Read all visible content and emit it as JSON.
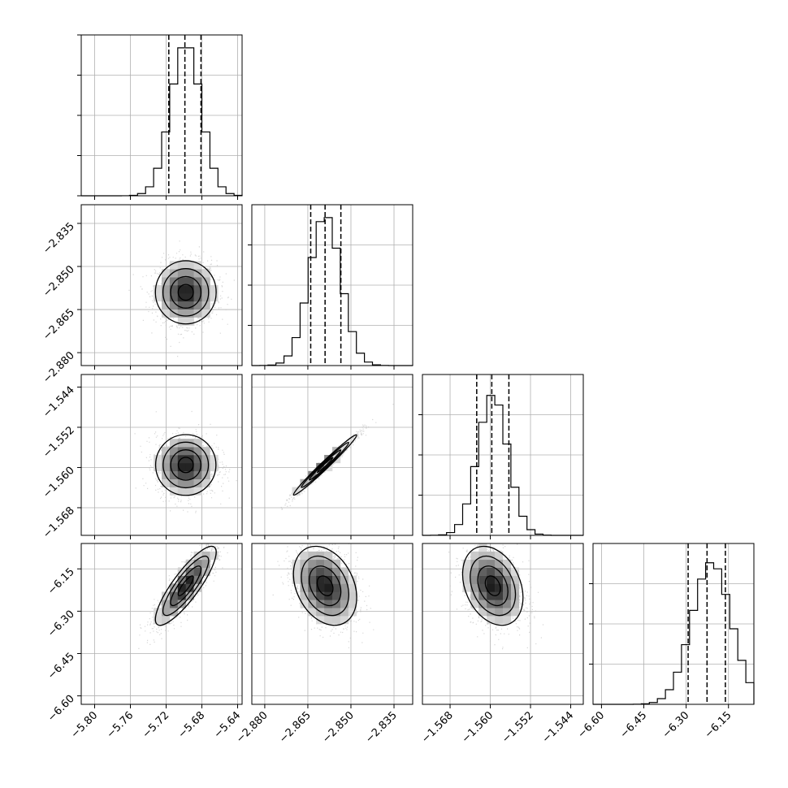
{
  "chart_data": {
    "type": "corner",
    "grid": true,
    "parameters": [
      {
        "range": [
          -5.815,
          -5.635
        ],
        "ticks": [
          -5.8,
          -5.76,
          -5.72,
          -5.68,
          -5.64
        ],
        "tick_labels": [
          "−5.80",
          "−5.76",
          "−5.72",
          "−5.68",
          "−5.64"
        ],
        "mean": -5.698,
        "sd": 0.017,
        "quantiles": [
          -5.717,
          -5.699,
          -5.681
        ],
        "hist_peak": 0.92
      },
      {
        "range": [
          -2.8845,
          -2.8285
        ],
        "ticks": [
          -2.88,
          -2.865,
          -2.85,
          -2.835
        ],
        "tick_labels": [
          "−2.880",
          "−2.865",
          "−2.850",
          "−2.835"
        ],
        "mean": -2.859,
        "sd": 0.0055,
        "quantiles": [
          -2.864,
          -2.859,
          -2.8535
        ],
        "hist_peak": 0.92
      },
      {
        "range": [
          -1.5735,
          -1.5415
        ],
        "ticks": [
          -1.568,
          -1.56,
          -1.552,
          -1.544
        ],
        "tick_labels": [
          "−1.568",
          "−1.560",
          "−1.552",
          "−1.544"
        ],
        "mean": -1.5595,
        "sd": 0.003,
        "quantiles": [
          -1.5627,
          -1.5597,
          -1.5563
        ],
        "hist_peak": 0.87
      },
      {
        "range": [
          -6.63,
          -6.06
        ],
        "ticks": [
          -6.6,
          -6.45,
          -6.3,
          -6.15
        ],
        "tick_labels": [
          "−6.60",
          "−6.45",
          "−6.30",
          "−6.15"
        ],
        "mean": -6.21,
        "sd": 0.07,
        "quantiles": [
          -6.293,
          -6.226,
          -6.161
        ],
        "hist_peak": 0.88
      }
    ],
    "correlations": [
      [
        1.0,
        0.0,
        0.0,
        0.85
      ],
      [
        0.0,
        1.0,
        0.985,
        -0.3
      ],
      [
        0.0,
        0.985,
        1.0,
        -0.3
      ],
      [
        0.85,
        -0.3,
        -0.3,
        1.0
      ]
    ]
  }
}
